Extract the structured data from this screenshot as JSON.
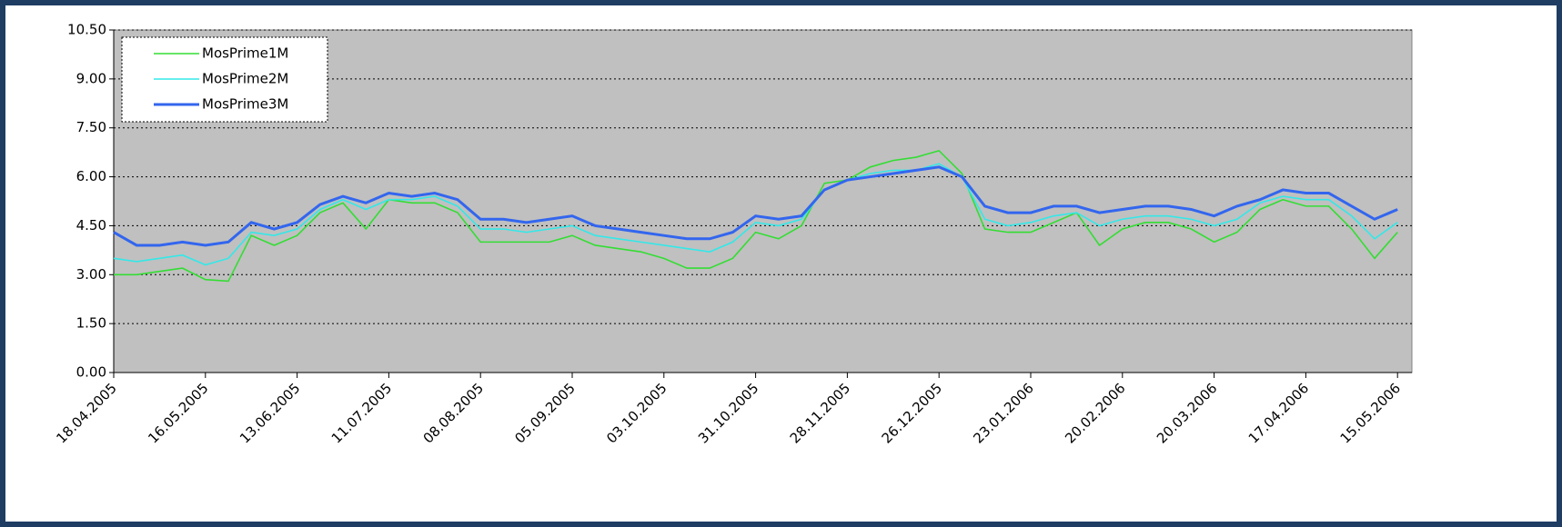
{
  "chart_data": {
    "type": "line",
    "categories": [
      "18.04.2005",
      null,
      null,
      null,
      "16.05.2005",
      null,
      null,
      null,
      "13.06.2005",
      null,
      null,
      null,
      "11.07.2005",
      null,
      null,
      null,
      "08.08.2005",
      null,
      null,
      null,
      "05.09.2005",
      null,
      null,
      null,
      "03.10.2005",
      null,
      null,
      null,
      "31.10.2005",
      null,
      null,
      null,
      "28.11.2005",
      null,
      null,
      null,
      "26.12.2005",
      null,
      null,
      null,
      "23.01.2006",
      null,
      null,
      null,
      "20.02.2006",
      null,
      null,
      null,
      "20.03.2006",
      null,
      null,
      null,
      "17.04.2006",
      null,
      null,
      null,
      "15.05.2006"
    ],
    "series": [
      {
        "name": "MosPrime1M",
        "color": "#33dd33",
        "values": [
          3.0,
          3.0,
          3.1,
          3.2,
          2.85,
          2.8,
          4.2,
          3.9,
          4.2,
          4.9,
          5.2,
          4.4,
          5.3,
          5.2,
          5.2,
          4.9,
          4.0,
          4.0,
          4.0,
          4.0,
          4.2,
          3.9,
          3.8,
          3.7,
          3.5,
          3.2,
          3.2,
          3.5,
          4.3,
          4.1,
          4.5,
          5.8,
          5.9,
          6.3,
          6.5,
          6.6,
          6.8,
          6.1,
          4.4,
          4.3,
          4.3,
          4.6,
          4.9,
          3.9,
          4.4,
          4.6,
          4.6,
          4.4,
          4.0,
          4.3,
          5.0,
          5.3,
          5.1,
          5.1,
          4.4,
          3.5,
          4.3
        ]
      },
      {
        "name": "MosPrime2M",
        "color": "#33e8e8",
        "values": [
          3.5,
          3.4,
          3.5,
          3.6,
          3.3,
          3.5,
          4.3,
          4.2,
          4.4,
          5.0,
          5.3,
          5.0,
          5.3,
          5.3,
          5.4,
          5.1,
          4.4,
          4.4,
          4.3,
          4.4,
          4.5,
          4.2,
          4.1,
          4.0,
          3.9,
          3.8,
          3.7,
          4.0,
          4.6,
          4.5,
          4.7,
          5.6,
          5.9,
          6.1,
          6.2,
          6.2,
          6.4,
          6.0,
          4.7,
          4.5,
          4.6,
          4.8,
          4.9,
          4.5,
          4.7,
          4.8,
          4.8,
          4.7,
          4.5,
          4.7,
          5.2,
          5.4,
          5.3,
          5.3,
          4.8,
          4.1,
          4.6
        ]
      },
      {
        "name": "MosPrime3M",
        "color": "#3366ee",
        "values": [
          4.3,
          3.9,
          3.9,
          4.0,
          3.9,
          4.0,
          4.6,
          4.4,
          4.6,
          5.15,
          5.4,
          5.2,
          5.5,
          5.4,
          5.5,
          5.3,
          4.7,
          4.7,
          4.6,
          4.7,
          4.8,
          4.5,
          4.4,
          4.3,
          4.2,
          4.1,
          4.1,
          4.3,
          4.8,
          4.7,
          4.8,
          5.6,
          5.9,
          6.0,
          6.1,
          6.2,
          6.3,
          6.0,
          5.1,
          4.9,
          4.9,
          5.1,
          5.1,
          4.9,
          5.0,
          5.1,
          5.1,
          5.0,
          4.8,
          5.1,
          5.3,
          5.6,
          5.5,
          5.5,
          5.1,
          4.7,
          5.0
        ]
      }
    ],
    "ylim": [
      0,
      10.5
    ],
    "yticks": [
      {
        "value": 0,
        "label": "0.00"
      },
      {
        "value": 1.5,
        "label": "1.50"
      },
      {
        "value": 3,
        "label": "3.00"
      },
      {
        "value": 4.5,
        "label": "4.50"
      },
      {
        "value": 6,
        "label": "6.00"
      },
      {
        "value": 7.5,
        "label": "7.50"
      },
      {
        "value": 9,
        "label": "9.00"
      },
      {
        "value": 10.5,
        "label": "10.50"
      }
    ],
    "grid": true,
    "legend": "upper left"
  }
}
